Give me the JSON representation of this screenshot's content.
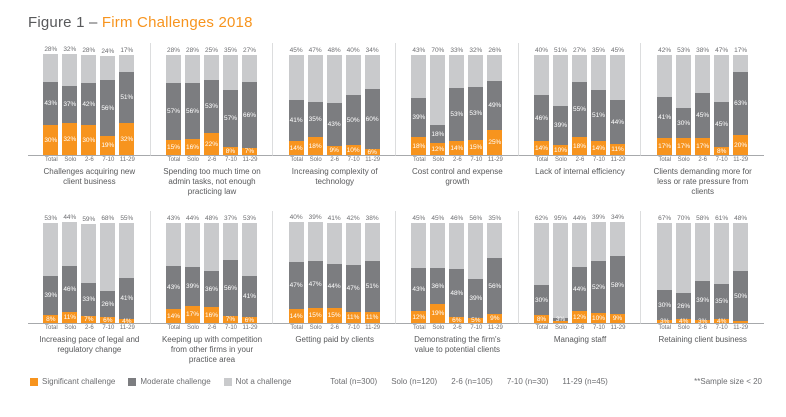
{
  "title": {
    "prefix": "Figure 1 – ",
    "main": "Firm Challenges 2018"
  },
  "legend": {
    "items": [
      {
        "label": "Significant challenge",
        "color": "#F7941E"
      },
      {
        "label": "Moderate challenge",
        "color": "#7C7D80"
      },
      {
        "label": "Not a challenge",
        "color": "#C9CACC"
      }
    ]
  },
  "footer": {
    "samples": [
      "Total (n=300)",
      "Solo (n=120)",
      "2-6 (n=105)",
      "7-10 (n=30)",
      "11-29 (n=45)"
    ],
    "note": "**Sample size < 20"
  },
  "chart_data": {
    "type": "bar",
    "stacked": true,
    "unit": "%",
    "ylim": [
      0,
      100
    ],
    "categories": [
      "Total",
      "Solo",
      "2-6",
      "7-10",
      "11-29"
    ],
    "series_names": [
      "Significant challenge",
      "Moderate challenge",
      "Not a challenge"
    ],
    "groups": [
      {
        "row": 1,
        "title": "Challenges acquiring new client business",
        "significant": [
          30,
          32,
          30,
          19,
          32
        ],
        "moderate": [
          43,
          37,
          42,
          56,
          51
        ],
        "not_challenge": [
          28,
          32,
          28,
          24,
          17
        ]
      },
      {
        "row": 1,
        "title": "Spending too much time on admin tasks, not enough practicing law",
        "significant": [
          15,
          16,
          22,
          8,
          7
        ],
        "moderate": [
          57,
          56,
          53,
          57,
          66
        ],
        "not_challenge": [
          28,
          28,
          25,
          35,
          27
        ]
      },
      {
        "row": 1,
        "title": "Increasing complexity of technology",
        "significant": [
          14,
          18,
          9,
          10,
          6
        ],
        "moderate": [
          41,
          35,
          43,
          50,
          60
        ],
        "not_challenge": [
          45,
          47,
          48,
          40,
          34
        ]
      },
      {
        "row": 1,
        "title": "Cost control and expense growth",
        "significant": [
          18,
          12,
          14,
          15,
          25
        ],
        "moderate": [
          39,
          18,
          53,
          53,
          49
        ],
        "not_challenge": [
          43,
          70,
          33,
          32,
          26
        ]
      },
      {
        "row": 1,
        "title": "Lack of internal efficiency",
        "significant": [
          14,
          10,
          18,
          14,
          11
        ],
        "moderate": [
          46,
          39,
          55,
          51,
          44
        ],
        "not_challenge": [
          40,
          51,
          27,
          35,
          45
        ]
      },
      {
        "row": 1,
        "title": "Clients demanding more for less or rate pressure from clients",
        "significant": [
          17,
          17,
          17,
          8,
          20
        ],
        "moderate": [
          41,
          30,
          45,
          45,
          63
        ],
        "not_challenge": [
          42,
          53,
          38,
          47,
          17
        ]
      },
      {
        "row": 2,
        "title": "Increasing pace of legal and regulatory change",
        "significant": [
          8,
          11,
          7,
          6,
          4
        ],
        "moderate": [
          39,
          46,
          33,
          26,
          41
        ],
        "not_challenge": [
          53,
          44,
          59,
          68,
          55
        ]
      },
      {
        "row": 2,
        "title": "Keeping up with competition from other firms in your practice area",
        "significant": [
          14,
          17,
          16,
          7,
          6
        ],
        "moderate": [
          43,
          39,
          36,
          56,
          41
        ],
        "not_challenge": [
          43,
          44,
          48,
          37,
          53
        ]
      },
      {
        "row": 2,
        "title": "Getting paid by clients",
        "significant": [
          14,
          15,
          15,
          11,
          11
        ],
        "moderate": [
          47,
          47,
          44,
          47,
          51
        ],
        "not_challenge": [
          40,
          39,
          41,
          42,
          38
        ]
      },
      {
        "row": 2,
        "title": "Demonstrating the firm's value to potential clients",
        "significant": [
          12,
          19,
          6,
          5,
          9
        ],
        "moderate": [
          43,
          36,
          48,
          39,
          56
        ],
        "not_challenge": [
          45,
          45,
          46,
          56,
          35
        ]
      },
      {
        "row": 2,
        "title": "Managing staff",
        "significant": [
          8,
          2,
          12,
          10,
          9
        ],
        "moderate": [
          30,
          3,
          44,
          52,
          58
        ],
        "not_challenge": [
          62,
          95,
          44,
          39,
          34
        ]
      },
      {
        "row": 2,
        "title": "Retaining client business",
        "significant": [
          3,
          4,
          3,
          4,
          2
        ],
        "moderate": [
          30,
          26,
          39,
          35,
          50
        ],
        "not_challenge": [
          67,
          70,
          58,
          61,
          48
        ]
      }
    ]
  }
}
